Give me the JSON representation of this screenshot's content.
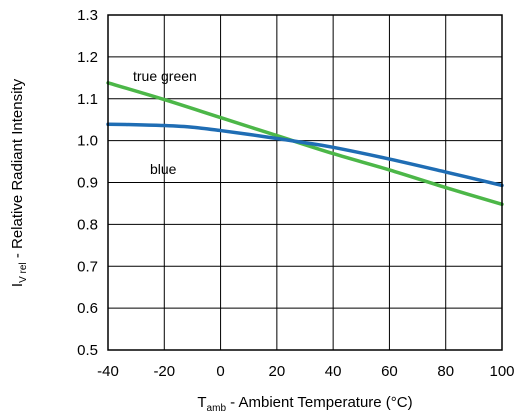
{
  "chart_data": {
    "type": "line",
    "x_ticks": [
      "-40",
      "-20",
      "0",
      "20",
      "40",
      "60",
      "80",
      "100"
    ],
    "y_ticks": [
      "0.5",
      "0.6",
      "0.7",
      "0.8",
      "0.9",
      "1.0",
      "1.1",
      "1.2",
      "1.3"
    ],
    "xlim": [
      -40,
      100
    ],
    "ylim": [
      0.5,
      1.3
    ],
    "grid": true,
    "xlabel": {
      "prefix": "T",
      "subscript": "amb",
      "suffix": " - Ambient Temperature (°C)"
    },
    "ylabel": {
      "prefix": "I",
      "subscript": "V rel",
      "suffix": " - Relative Radiant Intensity"
    },
    "series": [
      {
        "name": "true green",
        "color": "#4cb748",
        "x": [
          -40,
          -20,
          0,
          20,
          40,
          60,
          80,
          100
        ],
        "y": [
          1.138,
          1.098,
          1.055,
          1.012,
          0.969,
          0.93,
          0.888,
          0.848
        ]
      },
      {
        "name": "blue",
        "color": "#1f6db4",
        "x": [
          -40,
          -30,
          -20,
          -10,
          0,
          10,
          20,
          30,
          40,
          60,
          80,
          100
        ],
        "y": [
          1.039,
          1.038,
          1.036,
          1.032,
          1.024,
          1.015,
          1.005,
          0.995,
          0.984,
          0.956,
          0.925,
          0.893
        ]
      }
    ],
    "annotations": [
      "true green",
      "blue"
    ]
  }
}
